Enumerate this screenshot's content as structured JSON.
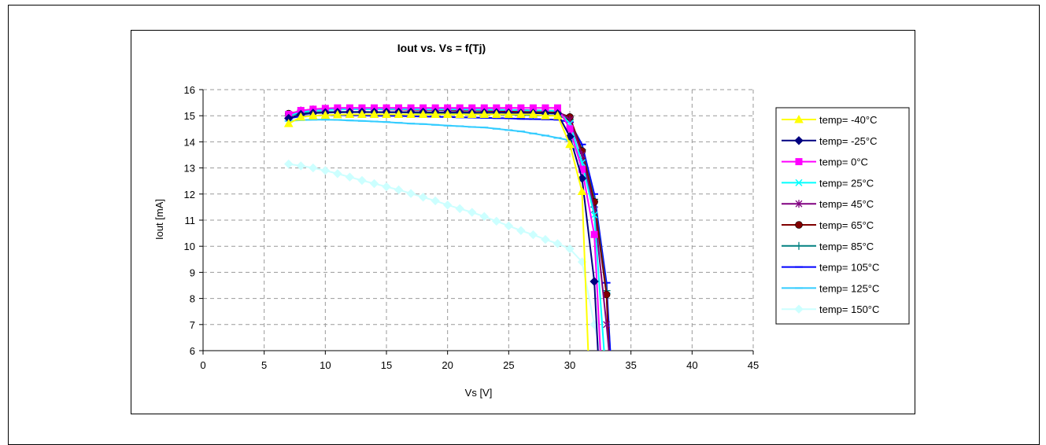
{
  "chart_data": {
    "type": "line",
    "title": "Iout vs. Vs = f(Tj)",
    "xlabel": "Vs [V]",
    "ylabel": "Iout [mA]",
    "xlim": [
      0,
      45
    ],
    "ylim": [
      6,
      16
    ],
    "xticks": [
      0,
      5,
      10,
      15,
      20,
      25,
      30,
      35,
      40,
      45
    ],
    "yticks": [
      6,
      7,
      8,
      9,
      10,
      11,
      12,
      13,
      14,
      15,
      16
    ],
    "grid": true,
    "legend_position": "right",
    "series": [
      {
        "name": "temp= -40°C",
        "color": "#FFFF00",
        "marker": "triangle",
        "x": [
          7,
          8,
          9,
          10,
          11,
          12,
          13,
          14,
          15,
          16,
          17,
          18,
          19,
          20,
          21,
          22,
          23,
          24,
          25,
          26,
          27,
          28,
          29,
          30,
          31,
          31.5
        ],
        "y": [
          14.7,
          14.95,
          15.0,
          15.02,
          15.04,
          15.05,
          15.05,
          15.05,
          15.05,
          15.05,
          15.05,
          15.05,
          15.05,
          15.05,
          15.05,
          15.05,
          15.05,
          15.05,
          15.05,
          15.05,
          15.05,
          15.0,
          15.0,
          13.9,
          12.1,
          6.0
        ]
      },
      {
        "name": "temp= -25°C",
        "color": "#000080",
        "marker": "diamond",
        "x": [
          7,
          8,
          9,
          10,
          11,
          12,
          13,
          14,
          15,
          16,
          17,
          18,
          19,
          20,
          21,
          22,
          23,
          24,
          25,
          26,
          27,
          28,
          29,
          30,
          31,
          32,
          32.3
        ],
        "y": [
          14.9,
          15.05,
          15.1,
          15.12,
          15.13,
          15.14,
          15.14,
          15.14,
          15.14,
          15.14,
          15.14,
          15.14,
          15.13,
          15.13,
          15.13,
          15.12,
          15.12,
          15.12,
          15.11,
          15.1,
          15.1,
          15.09,
          15.08,
          14.2,
          12.6,
          8.65,
          6.0
        ]
      },
      {
        "name": "temp= 0°C",
        "color": "#FF00FF",
        "marker": "square",
        "x": [
          7,
          8,
          9,
          10,
          11,
          12,
          13,
          14,
          15,
          16,
          17,
          18,
          19,
          20,
          21,
          22,
          23,
          24,
          25,
          26,
          27,
          28,
          29,
          30,
          31,
          32,
          32.5
        ],
        "y": [
          15.05,
          15.2,
          15.25,
          15.28,
          15.3,
          15.3,
          15.3,
          15.3,
          15.3,
          15.3,
          15.3,
          15.3,
          15.3,
          15.3,
          15.3,
          15.3,
          15.3,
          15.3,
          15.3,
          15.3,
          15.3,
          15.3,
          15.3,
          14.5,
          12.95,
          10.45,
          6.0
        ]
      },
      {
        "name": "temp= 25°C",
        "color": "#00FFFF",
        "marker": "x",
        "x": [
          7,
          8,
          9,
          10,
          11,
          12,
          13,
          14,
          15,
          16,
          17,
          18,
          19,
          20,
          21,
          22,
          23,
          24,
          25,
          26,
          27,
          28,
          29,
          30,
          31,
          32,
          32.8
        ],
        "y": [
          15.0,
          15.15,
          15.2,
          15.22,
          15.24,
          15.25,
          15.25,
          15.25,
          15.25,
          15.25,
          15.25,
          15.25,
          15.24,
          15.24,
          15.24,
          15.23,
          15.23,
          15.22,
          15.22,
          15.21,
          15.2,
          15.2,
          15.18,
          14.7,
          13.2,
          11.2,
          6.0
        ]
      },
      {
        "name": "temp= 45°C",
        "color": "#800080",
        "marker": "star",
        "x": [
          7,
          8,
          9,
          10,
          11,
          12,
          13,
          14,
          15,
          16,
          17,
          18,
          19,
          20,
          21,
          22,
          23,
          24,
          25,
          26,
          27,
          28,
          29,
          30,
          31,
          32,
          33,
          33.2
        ],
        "y": [
          15.05,
          15.2,
          15.24,
          15.26,
          15.27,
          15.27,
          15.27,
          15.27,
          15.27,
          15.27,
          15.27,
          15.26,
          15.26,
          15.25,
          15.25,
          15.24,
          15.24,
          15.23,
          15.22,
          15.22,
          15.21,
          15.2,
          15.19,
          14.85,
          13.5,
          11.4,
          7.0,
          6.0
        ]
      },
      {
        "name": "temp= 65°C",
        "color": "#800000",
        "marker": "circle",
        "x": [
          7,
          8,
          9,
          10,
          11,
          12,
          13,
          14,
          15,
          16,
          17,
          18,
          19,
          20,
          21,
          22,
          23,
          24,
          25,
          26,
          27,
          28,
          29,
          30,
          31,
          32,
          33,
          33.2
        ],
        "y": [
          15.08,
          15.18,
          15.22,
          15.24,
          15.25,
          15.25,
          15.25,
          15.25,
          15.24,
          15.24,
          15.23,
          15.23,
          15.22,
          15.21,
          15.2,
          15.2,
          15.19,
          15.18,
          15.17,
          15.16,
          15.15,
          15.14,
          15.13,
          14.95,
          13.65,
          11.7,
          8.15,
          6.0
        ]
      },
      {
        "name": "temp= 85°C",
        "color": "#008080",
        "marker": "plus",
        "x": [
          7,
          8,
          9,
          10,
          11,
          12,
          13,
          14,
          15,
          16,
          17,
          18,
          19,
          20,
          21,
          22,
          23,
          24,
          25,
          26,
          27,
          28,
          29,
          30,
          31,
          32,
          33,
          33.2
        ],
        "y": [
          15.0,
          15.1,
          15.13,
          15.15,
          15.15,
          15.15,
          15.15,
          15.14,
          15.13,
          15.13,
          15.12,
          15.11,
          15.1,
          15.09,
          15.08,
          15.07,
          15.06,
          15.05,
          15.04,
          15.03,
          15.02,
          15.01,
          15.0,
          14.85,
          13.7,
          11.8,
          8.3,
          6.0
        ]
      },
      {
        "name": "temp= 105°C",
        "color": "#0000FF",
        "marker": "dash",
        "x": [
          7,
          8,
          9,
          10,
          11,
          12,
          13,
          14,
          15,
          16,
          17,
          18,
          19,
          20,
          21,
          22,
          23,
          24,
          25,
          26,
          27,
          28,
          29,
          30,
          31,
          32,
          33,
          33.3
        ],
        "y": [
          14.9,
          14.98,
          15.0,
          15.02,
          15.02,
          15.02,
          15.01,
          15.0,
          15.0,
          14.99,
          14.98,
          14.97,
          14.96,
          14.95,
          14.94,
          14.93,
          14.92,
          14.91,
          14.9,
          14.88,
          14.87,
          14.86,
          14.85,
          14.75,
          13.9,
          12.0,
          8.6,
          6.0
        ]
      },
      {
        "name": "temp= 125°C",
        "color": "#33CCFF",
        "marker": "dash",
        "x": [
          7,
          8,
          9,
          10,
          11,
          12,
          13,
          14,
          15,
          16,
          17,
          18,
          19,
          20,
          21,
          22,
          23,
          24,
          25,
          26,
          27,
          28,
          29,
          30,
          31,
          32,
          33,
          33.3
        ],
        "y": [
          14.8,
          14.83,
          14.85,
          14.85,
          14.84,
          14.82,
          14.8,
          14.78,
          14.76,
          14.73,
          14.7,
          14.68,
          14.65,
          14.62,
          14.6,
          14.57,
          14.55,
          14.5,
          14.45,
          14.4,
          14.32,
          14.24,
          14.15,
          14.05,
          13.3,
          11.5,
          8.2,
          6.0
        ]
      },
      {
        "name": "temp= 150°C",
        "color": "#CCFFFF",
        "marker": "diamond",
        "x": [
          7,
          8,
          9,
          10,
          11,
          12,
          13,
          14,
          15,
          16,
          17,
          18,
          19,
          20,
          21,
          22,
          23,
          24,
          25,
          26,
          27,
          28,
          29,
          30,
          31,
          32,
          32.5
        ],
        "y": [
          13.15,
          13.08,
          13.0,
          12.9,
          12.78,
          12.65,
          12.52,
          12.4,
          12.28,
          12.16,
          12.02,
          11.88,
          11.74,
          11.58,
          11.44,
          11.3,
          11.14,
          10.96,
          10.78,
          10.6,
          10.44,
          10.26,
          10.1,
          9.9,
          9.4,
          7.0,
          6.0
        ]
      }
    ]
  }
}
